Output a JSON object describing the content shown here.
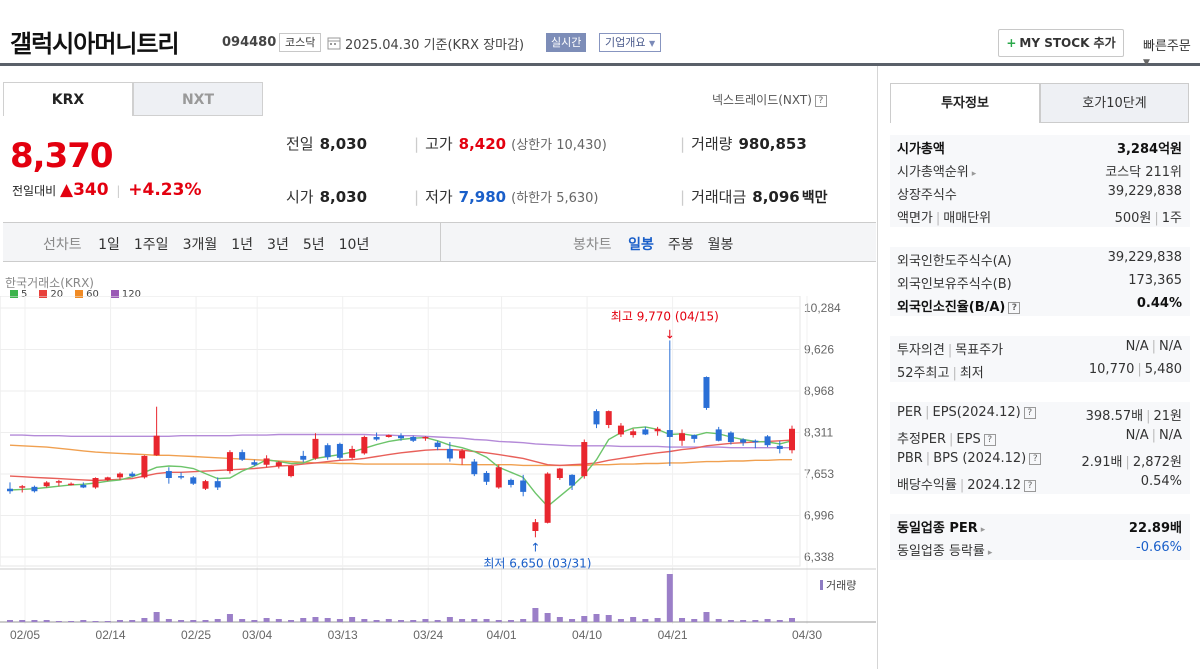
{
  "header": {
    "stock_name": "갤럭시아머니트리",
    "stock_code": "094480",
    "market": "코스닥",
    "date_info": "2025.04.30 기준(KRX 장마감)",
    "realtime_label": "실시간",
    "overview_label": "기업개요",
    "mystock_label": "MY STOCK 추가",
    "quick_order_label": "빠른주문"
  },
  "tabs": {
    "krx": "KRX",
    "nxt": "NXT",
    "nextrade": "넥스트레이드(NXT)"
  },
  "price": {
    "current": "8,370",
    "change_label": "전일대비",
    "change": "340",
    "change_pct": "+4.23%"
  },
  "summary": {
    "prev_close_label": "전일",
    "prev_close": "8,030",
    "open_label": "시가",
    "open": "8,030",
    "high_label": "고가",
    "high": "8,420",
    "upper_limit": "(상한가 10,430)",
    "low_label": "저가",
    "low": "7,980",
    "lower_limit": "(하한가 5,630)",
    "volume_label": "거래량",
    "volume": "980,853",
    "amount_label": "거래대금",
    "amount": "8,096",
    "amount_unit": "백만"
  },
  "periods": {
    "line_label": "선차트",
    "line_items": [
      "1일",
      "1주일",
      "3개월",
      "1년",
      "3년",
      "5년",
      "10년"
    ],
    "candle_label": "봉차트",
    "candle_items": [
      "일봉",
      "주봉",
      "월봉"
    ],
    "candle_active": "일봉"
  },
  "chart_data": {
    "type": "candlestick",
    "market_label": "한국거래소(KRX)",
    "legend": [
      {
        "name": "5",
        "color": "#3cb44b"
      },
      {
        "name": "20",
        "color": "#e8403a"
      },
      {
        "name": "60",
        "color": "#f08a24"
      },
      {
        "name": "120",
        "color": "#9b59b6"
      }
    ],
    "y_ticks": [
      "10,284",
      "9,626",
      "8,968",
      "8,311",
      "7,653",
      "6,996",
      "6,338"
    ],
    "x_ticks": [
      "02/05",
      "02/14",
      "02/25",
      "03/04",
      "03/13",
      "03/24",
      "04/01",
      "04/10",
      "04/21",
      "04/30"
    ],
    "ylim": [
      6338,
      10284
    ],
    "annotation_high": "최고 9,770 (04/15)",
    "annotation_low": "최저 6,650 (03/31)",
    "volume_label": "거래량",
    "candles": [
      [
        7420,
        7520,
        7340,
        7380
      ],
      [
        7440,
        7480,
        7360,
        7460
      ],
      [
        7450,
        7470,
        7360,
        7380
      ],
      [
        7460,
        7540,
        7440,
        7520
      ],
      [
        7520,
        7560,
        7460,
        7540
      ],
      [
        7480,
        7520,
        7470,
        7500
      ],
      [
        7480,
        7520,
        7430,
        7440
      ],
      [
        7440,
        7600,
        7420,
        7590
      ],
      [
        7560,
        7610,
        7540,
        7600
      ],
      [
        7600,
        7680,
        7560,
        7660
      ],
      [
        7660,
        7690,
        7600,
        7620
      ],
      [
        7600,
        7950,
        7580,
        7940
      ],
      [
        7950,
        8720,
        7940,
        8260
      ],
      [
        7700,
        7760,
        7500,
        7590
      ],
      [
        7620,
        7680,
        7570,
        7600
      ],
      [
        7600,
        7620,
        7480,
        7500
      ],
      [
        7420,
        7560,
        7400,
        7540
      ],
      [
        7540,
        7600,
        7400,
        7440
      ],
      [
        7700,
        8030,
        7660,
        8000
      ],
      [
        8000,
        8040,
        7860,
        7880
      ],
      [
        7840,
        7880,
        7780,
        7800
      ],
      [
        7800,
        7950,
        7760,
        7900
      ],
      [
        7780,
        7860,
        7740,
        7840
      ],
      [
        7620,
        7790,
        7600,
        7780
      ],
      [
        7940,
        8020,
        7840,
        7880
      ],
      [
        7900,
        8300,
        7880,
        8210
      ],
      [
        8110,
        8140,
        7880,
        7920
      ],
      [
        8130,
        8150,
        7880,
        7910
      ],
      [
        7910,
        8100,
        7880,
        8050
      ],
      [
        7980,
        8260,
        7960,
        8240
      ],
      [
        8240,
        8310,
        8180,
        8200
      ],
      [
        8240,
        8280,
        8230,
        8270
      ],
      [
        8260,
        8300,
        8180,
        8220
      ],
      [
        8240,
        8260,
        8160,
        8180
      ],
      [
        8220,
        8250,
        8180,
        8240
      ],
      [
        8150,
        8180,
        8030,
        8080
      ],
      [
        8050,
        8160,
        7850,
        7900
      ],
      [
        7900,
        8050,
        7800,
        8020
      ],
      [
        7850,
        7890,
        7620,
        7650
      ],
      [
        7670,
        7700,
        7480,
        7530
      ],
      [
        7440,
        7800,
        7420,
        7760
      ],
      [
        7560,
        7580,
        7440,
        7480
      ],
      [
        7550,
        7640,
        7300,
        7370
      ],
      [
        6750,
        6940,
        6650,
        6890
      ],
      [
        6880,
        7680,
        6870,
        7660
      ],
      [
        7590,
        7750,
        7560,
        7740
      ],
      [
        7640,
        7650,
        7400,
        7470
      ],
      [
        7620,
        8200,
        7580,
        8160
      ],
      [
        8650,
        8680,
        8380,
        8440
      ],
      [
        8430,
        8660,
        8380,
        8650
      ],
      [
        8280,
        8460,
        8240,
        8420
      ],
      [
        8270,
        8370,
        8230,
        8330
      ],
      [
        8360,
        8400,
        8270,
        8280
      ],
      [
        8330,
        8400,
        8260,
        8370
      ],
      [
        8350,
        9770,
        7780,
        8240
      ],
      [
        8180,
        8360,
        8100,
        8300
      ],
      [
        8270,
        8280,
        8150,
        8210
      ],
      [
        9190,
        9200,
        8670,
        8700
      ],
      [
        8360,
        8400,
        8170,
        8180
      ],
      [
        8310,
        8330,
        8120,
        8160
      ],
      [
        8200,
        8220,
        8100,
        8150
      ],
      [
        8180,
        8200,
        8060,
        8170
      ],
      [
        8250,
        8270,
        8080,
        8110
      ],
      [
        8100,
        8180,
        7980,
        8050
      ],
      [
        8030,
        8420,
        7980,
        8370
      ]
    ],
    "volumes": [
      2,
      2,
      2,
      2,
      1,
      1,
      2,
      1,
      1,
      2,
      2,
      4,
      10,
      3,
      2,
      2,
      2,
      3,
      8,
      3,
      2,
      4,
      3,
      2,
      4,
      5,
      4,
      3,
      5,
      3,
      2,
      3,
      2,
      2,
      3,
      2,
      5,
      3,
      3,
      3,
      2,
      2,
      3,
      14,
      9,
      5,
      3,
      6,
      8,
      7,
      3,
      5,
      3,
      4,
      48,
      4,
      3,
      10,
      3,
      2,
      2,
      2,
      3,
      2,
      4
    ],
    "ma5": [
      7400,
      7410,
      7420,
      7440,
      7460,
      7480,
      7490,
      7510,
      7540,
      7560,
      7610,
      7680,
      7760,
      7780,
      7770,
      7740,
      7660,
      7580,
      7590,
      7700,
      7780,
      7880,
      7850,
      7820,
      7830,
      7900,
      7930,
      7960,
      8000,
      8060,
      8120,
      8170,
      8200,
      8220,
      8230,
      8180,
      8110,
      8070,
      8010,
      7920,
      7760,
      7680,
      7600,
      7350,
      7140,
      7300,
      7460,
      7640,
      7880,
      8200,
      8310,
      8380,
      8400,
      8360,
      8280,
      8290,
      8260,
      8310,
      8290,
      8240,
      8200,
      8170,
      8160,
      8130,
      8180
    ],
    "ma20": [
      7620,
      7610,
      7600,
      7590,
      7580,
      7570,
      7560,
      7550,
      7560,
      7570,
      7580,
      7620,
      7660,
      7680,
      7680,
      7690,
      7700,
      7710,
      7720,
      7730,
      7740,
      7760,
      7780,
      7790,
      7810,
      7830,
      7850,
      7870,
      7880,
      7900,
      7930,
      7960,
      7990,
      8010,
      8030,
      8040,
      8040,
      8030,
      8010,
      7990,
      7960,
      7930,
      7900,
      7850,
      7800,
      7790,
      7800,
      7810,
      7830,
      7870,
      7900,
      7930,
      7960,
      7990,
      8010,
      8040,
      8060,
      8100,
      8120,
      8140,
      8150,
      8160,
      8170,
      8180,
      8190
    ],
    "ma60": [
      8110,
      8100,
      8090,
      8080,
      8060,
      8040,
      8020,
      8000,
      7990,
      7980,
      7970,
      7960,
      7950,
      7950,
      7940,
      7930,
      7920,
      7910,
      7900,
      7890,
      7880,
      7870,
      7860,
      7850,
      7840,
      7830,
      7830,
      7820,
      7820,
      7810,
      7810,
      7810,
      7810,
      7810,
      7810,
      7810,
      7810,
      7800,
      7800,
      7800,
      7800,
      7800,
      7790,
      7790,
      7790,
      7790,
      7790,
      7790,
      7800,
      7800,
      7810,
      7810,
      7820,
      7820,
      7830,
      7830,
      7840,
      7850,
      7850,
      7860,
      7860,
      7870,
      7870,
      7880,
      7880
    ],
    "ma120": [
      8270,
      8270,
      8260,
      8260,
      8260,
      8250,
      8250,
      8250,
      8250,
      8250,
      8250,
      8250,
      8250,
      8250,
      8260,
      8260,
      8260,
      8260,
      8260,
      8270,
      8270,
      8270,
      8280,
      8280,
      8280,
      8280,
      8280,
      8280,
      8280,
      8280,
      8270,
      8270,
      8260,
      8260,
      8250,
      8240,
      8230,
      8220,
      8200,
      8190,
      8170,
      8160,
      8150,
      8130,
      8120,
      8110,
      8100,
      8100,
      8100,
      8100,
      8090,
      8090,
      8090,
      8090,
      8080,
      8080,
      8080,
      8080,
      8080,
      8070,
      8070,
      8070,
      8070,
      8070,
      8070
    ]
  },
  "right_panel": {
    "tab_info": "투자정보",
    "tab_ask": "호가10단계",
    "g1": [
      {
        "k": "시가총액",
        "v": "3,284억원",
        "bold": true
      },
      {
        "k": "시가총액순위",
        "v": "코스닥 211위"
      },
      {
        "k": "상장주식수",
        "v": "39,229,838"
      },
      {
        "k": "액면가",
        "k2": "매매단위",
        "v": "500원",
        "v2": "1주"
      }
    ],
    "g2": [
      {
        "k": "외국인한도주식수(A)",
        "v": "39,229,838"
      },
      {
        "k": "외국인보유주식수(B)",
        "v": "173,365"
      },
      {
        "k": "외국인소진율(B/A)",
        "v": "0.44%",
        "bold": true
      }
    ],
    "g3": [
      {
        "k": "투자의견",
        "k2": "목표주가",
        "v": "N/A",
        "v2": "N/A"
      },
      {
        "k": "52주최고",
        "k2": "최저",
        "v": "10,770",
        "v2": "5,480"
      }
    ],
    "g4": [
      {
        "k": "PER",
        "k2": "EPS(2024.12)",
        "v": "398.57배",
        "v2": "21원"
      },
      {
        "k": "추정PER",
        "k2": "EPS",
        "v": "N/A",
        "v2": "N/A"
      },
      {
        "k": "PBR",
        "k2": "BPS (2024.12)",
        "v": "2.91배",
        "v2": "2,872원"
      },
      {
        "k": "배당수익률",
        "k2": "2024.12",
        "v": "0.54%"
      }
    ],
    "g5": [
      {
        "k": "동일업종 PER",
        "v": "22.89배",
        "bold": true
      },
      {
        "k": "동일업종 등락률",
        "v": "-0.66%"
      }
    ]
  }
}
